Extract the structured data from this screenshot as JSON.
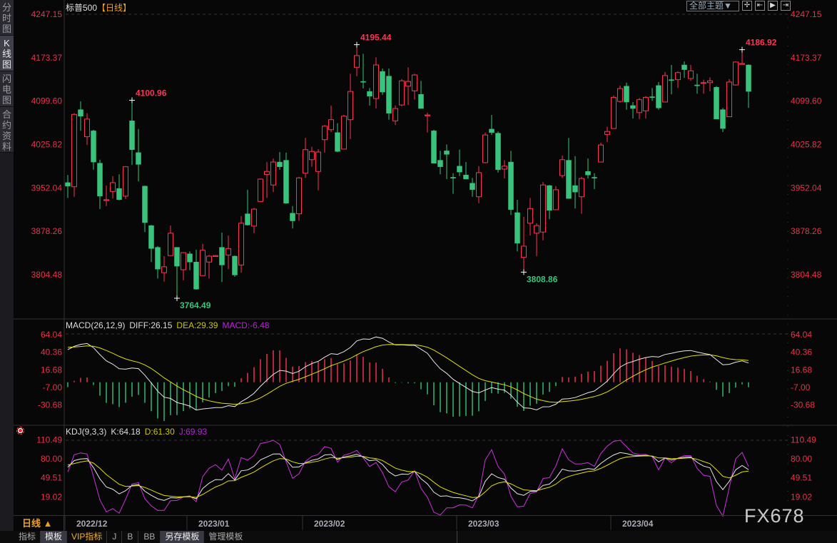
{
  "left_tabs": [
    {
      "label": "分时图",
      "active": false
    },
    {
      "label": "K线图",
      "active": true
    },
    {
      "label": "闪电图",
      "active": false
    },
    {
      "label": "合约资料",
      "active": false
    }
  ],
  "header": {
    "symbol": "标普500",
    "period_label": "【日线】"
  },
  "toolbar": {
    "theme_label": "全部主题▼",
    "icons": [
      "crosshair-icon",
      "zoom-in-range-icon",
      "play-forward-icon",
      "move-to-end-icon"
    ]
  },
  "colors": {
    "up": "#ff3355",
    "down": "#38c47c",
    "axis_text": "#e8334a",
    "diff": "#e8e8e8",
    "dea": "#e0e000",
    "macd": "#d030e0",
    "k": "#e8e8e8",
    "d": "#e0e000",
    "j": "#d030e0",
    "low_label": "#38c47c",
    "high_label": "#ff3355"
  },
  "macd_header": {
    "name": "MACD(26,12,9)",
    "diff": "DIFF:26.15",
    "dea": "DEA:29.39",
    "macd": "MACD:-6.48"
  },
  "kdj_header": {
    "name": "KDJ(9,3,3)",
    "k": "K:64.18",
    "d": "D:61.30",
    "j": "J:69.93"
  },
  "date_bar": {
    "range_label": "日线 ▲"
  },
  "bottom_tabs": [
    {
      "label": "指标",
      "active": false
    },
    {
      "label": "模板",
      "active": true
    },
    {
      "label": "VIP指标",
      "active": false,
      "vip": true
    },
    {
      "label": "J",
      "active": false
    },
    {
      "label": "B",
      "active": false
    },
    {
      "label": "BB",
      "active": false
    },
    {
      "label": "另存模板",
      "active": true
    },
    {
      "label": "管理模板",
      "active": false
    }
  ],
  "watermark": "FX678",
  "chart_data": [
    {
      "type": "candlestick",
      "title": "标普500",
      "yticks": [
        "4247.15",
        "4173.37",
        "4099.60",
        "4025.82",
        "3952.04",
        "3878.26",
        "3804.48"
      ],
      "ylim": [
        3764.49,
        4247.15
      ],
      "grid": "top dashed line only",
      "x_labels": [
        {
          "label": "2022/12",
          "candle": 0
        },
        {
          "label": "2023/01",
          "candle": 19
        },
        {
          "label": "2023/02",
          "candle": 37
        },
        {
          "label": "2023/03",
          "candle": 61
        },
        {
          "label": "2023/04",
          "candle": 85
        }
      ],
      "annotations": [
        {
          "text": "4100.96",
          "candle": 10,
          "kind": "high"
        },
        {
          "text": "4195.44",
          "candle": 45,
          "kind": "high"
        },
        {
          "text": "3764.49",
          "candle": 17,
          "kind": "low"
        },
        {
          "text": "3808.86",
          "candle": 71,
          "kind": "low"
        },
        {
          "text": "4186.92",
          "candle": 105,
          "kind": "high"
        }
      ],
      "ohlc": [
        [
          3961,
          3974,
          3935,
          3955
        ],
        [
          3954,
          4079,
          3937,
          4077
        ],
        [
          4085,
          4099,
          4049,
          4074
        ],
        [
          4039,
          4079,
          4025,
          4069
        ],
        [
          4049,
          4051,
          3983,
          3996
        ],
        [
          3994,
          4000,
          3916,
          3938
        ],
        [
          3931,
          3956,
          3921,
          3932
        ],
        [
          3946,
          3972,
          3934,
          3961
        ],
        [
          3951,
          3975,
          3931,
          3932
        ],
        [
          3938,
          3989,
          3933,
          3988
        ],
        [
          4066,
          4100.96,
          3991,
          4017
        ],
        [
          4012,
          4052,
          3963,
          3992
        ],
        [
          3955,
          3956,
          3877,
          3893
        ],
        [
          3888,
          3889,
          3826,
          3849
        ],
        [
          3851,
          3853,
          3798,
          3814
        ],
        [
          3808,
          3836,
          3793,
          3818
        ],
        [
          3837,
          3888,
          3837,
          3875
        ],
        [
          3851,
          3851,
          3764.49,
          3819
        ],
        [
          3813,
          3843,
          3795,
          3842
        ],
        [
          3840,
          3844,
          3812,
          3826
        ],
        [
          3826,
          3847,
          3779,
          3780
        ],
        [
          3803,
          3857,
          3803,
          3846
        ],
        [
          3826,
          3838,
          3798,
          3836
        ],
        [
          3836,
          3838,
          3835,
          3837
        ],
        [
          3851,
          3876,
          3792,
          3821
        ],
        [
          3838,
          3871,
          3814,
          3849
        ],
        [
          3836,
          3837,
          3801,
          3804
        ],
        [
          3821,
          3904,
          3808,
          3892
        ],
        [
          3908,
          3949,
          3888,
          3889
        ],
        [
          3887,
          3918,
          3875,
          3916
        ],
        [
          3929,
          3968,
          3928,
          3967
        ],
        [
          3975,
          3996,
          3935,
          3980
        ],
        [
          3957,
          4002,
          3945,
          3996
        ],
        [
          3996,
          4013,
          3983,
          3988
        ],
        [
          3999,
          4012,
          3925,
          3926
        ],
        [
          3909,
          3921,
          3883,
          3896
        ],
        [
          3908,
          3971,
          3896,
          3969
        ],
        [
          3977,
          4037,
          3969,
          4017
        ],
        [
          4000,
          4022,
          3988,
          4014
        ],
        [
          3980,
          4018,
          3948,
          4013
        ],
        [
          4034,
          4059,
          4012,
          4057
        ],
        [
          4051,
          4092,
          4047,
          4068
        ],
        [
          4046,
          4062,
          4013,
          4014
        ],
        [
          4018,
          4076,
          4018,
          4074
        ],
        [
          4068,
          4146,
          4035,
          4116
        ],
        [
          4157,
          4195.44,
          4142,
          4177
        ],
        [
          4133,
          4180,
          4121,
          4132
        ],
        [
          4116,
          4122,
          4092,
          4108
        ],
        [
          4104,
          4174,
          4087,
          4161
        ],
        [
          4150,
          4155,
          4110,
          4115
        ],
        [
          4142,
          4155,
          4068,
          4079
        ],
        [
          4066,
          4092,
          4059,
          4087
        ],
        [
          4093,
          4137,
          4091,
          4134
        ],
        [
          4125,
          4157,
          4093,
          4133
        ],
        [
          4117,
          4146,
          4102,
          4144
        ],
        [
          4111,
          4134,
          4087,
          4087
        ],
        [
          4075,
          4080,
          4046,
          4076
        ],
        [
          4049,
          4051,
          3994,
          3994
        ],
        [
          3999,
          4015,
          3975,
          3988
        ],
        [
          4015,
          4026,
          3967,
          4009
        ],
        [
          3970,
          3977,
          3942,
          3969
        ],
        [
          3989,
          4017,
          3972,
          3979
        ],
        [
          3974,
          3996,
          3967,
          3967
        ],
        [
          3960,
          3969,
          3937,
          3949
        ],
        [
          3937,
          3989,
          3926,
          3978
        ],
        [
          3995,
          4046,
          3994,
          4042
        ],
        [
          4052,
          4076,
          4042,
          4046
        ],
        [
          4045,
          4048,
          3978,
          3983
        ],
        [
          3984,
          3999,
          3968,
          3989
        ],
        [
          3996,
          4015,
          3906,
          3915
        ],
        [
          3910,
          3932,
          3844,
          3858
        ],
        [
          3834,
          3903,
          3808.86,
          3853
        ],
        [
          3892,
          3935,
          3871,
          3917
        ],
        [
          3875,
          3892,
          3836,
          3888
        ],
        [
          3877,
          3962,
          3863,
          3957
        ],
        [
          3956,
          3957,
          3899,
          3914
        ],
        [
          3915,
          3955,
          3915,
          3949
        ],
        [
          3973,
          4007,
          3969,
          4000
        ],
        [
          3999,
          4037,
          3934,
          3934
        ],
        [
          3956,
          4006,
          3917,
          3945
        ],
        [
          3937,
          3971,
          3908,
          3968
        ],
        [
          3980,
          4002,
          3968,
          3974
        ],
        [
          3970,
          3977,
          3950,
          3969
        ],
        [
          3996,
          4029,
          3996,
          4025
        ],
        [
          4043,
          4056,
          4030,
          4048
        ],
        [
          4053,
          4109,
          4053,
          4106
        ],
        [
          4099,
          4126,
          4097,
          4121
        ],
        [
          4125,
          4131,
          4085,
          4098
        ],
        [
          4092,
          4098,
          4070,
          4087
        ],
        [
          4080,
          4105,
          4069,
          4102
        ],
        [
          4083,
          4108,
          4070,
          4106
        ],
        [
          4107,
          4122,
          4100,
          4106
        ],
        [
          4126,
          4132,
          4085,
          4088
        ],
        [
          4098,
          4149,
          4098,
          4143
        ],
        [
          4136,
          4161,
          4111,
          4135
        ],
        [
          4136,
          4150,
          4122,
          4148
        ],
        [
          4161,
          4167,
          4139,
          4153
        ],
        [
          4138,
          4161,
          4134,
          4151
        ],
        [
          4127,
          4146,
          4112,
          4126
        ],
        [
          4130,
          4136,
          4112,
          4131
        ],
        [
          4131,
          4140,
          4116,
          4134
        ],
        [
          4123,
          4125,
          4069,
          4069
        ],
        [
          4085,
          4088,
          4047,
          4053
        ],
        [
          4073,
          4137,
          4073,
          4132
        ],
        [
          4127,
          4167,
          4126,
          4166
        ],
        [
          4163,
          4186.92,
          4162,
          4163.5
        ],
        [
          4161,
          4162,
          4088,
          4116
        ]
      ]
    },
    {
      "type": "line+bar",
      "title": "MACD(26,12,9)",
      "yticks": [
        "64.04",
        "40.36",
        "16.68",
        "-7.00",
        "-30.68"
      ],
      "ylim": [
        -40,
        70
      ],
      "series": [
        {
          "name": "DIFF",
          "last": 26.15
        },
        {
          "name": "DEA",
          "last": 29.39
        },
        {
          "name": "MACD",
          "last": -6.48
        }
      ]
    },
    {
      "type": "line",
      "title": "KDJ(9,3,3)",
      "yticks": [
        "110.49",
        "80.00",
        "49.51",
        "19.02"
      ],
      "ylim": [
        0,
        120
      ],
      "series": [
        {
          "name": "K",
          "last": 64.18
        },
        {
          "name": "D",
          "last": 61.3
        },
        {
          "name": "J",
          "last": 69.93
        }
      ]
    }
  ]
}
